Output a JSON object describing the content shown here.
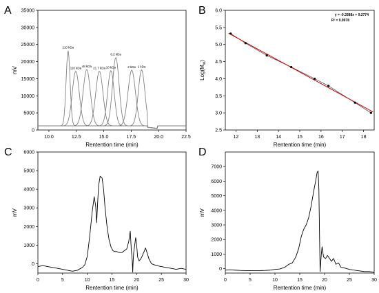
{
  "chart_data": [
    {
      "id": "A",
      "panel_label": "A",
      "type": "line",
      "xlabel": "Rentention time (min)",
      "ylabel": "mV",
      "xlim": [
        9.0,
        22.5
      ],
      "ylim": [
        0,
        35000
      ],
      "xticks": [
        "10.0",
        "12.5",
        "15.0",
        "17.5",
        "20.0",
        "22.5"
      ],
      "xtick_values": [
        10.0,
        12.5,
        15.0,
        17.5,
        20.0,
        22.5
      ],
      "yticks": [
        "0",
        "5000",
        "10000",
        "15000",
        "20000",
        "25000",
        "30000",
        "35000"
      ],
      "ytick_values": [
        0,
        5000,
        10000,
        15000,
        20000,
        25000,
        30000,
        35000
      ],
      "baseline": 1200,
      "line_color": "#808080",
      "grid": false,
      "peaks": [
        {
          "label": "210 kDa",
          "center": 11.75,
          "height": 22000,
          "width": 0.18
        },
        {
          "label": "110 kDa",
          "center": 12.45,
          "height": 16000,
          "width": 0.32
        },
        {
          "label": "48 kDa",
          "center": 13.45,
          "height": 16500,
          "width": 0.33
        },
        {
          "label": "21.7 kDa",
          "center": 14.6,
          "height": 16000,
          "width": 0.33
        },
        {
          "label": "10 kDa",
          "center": 15.65,
          "height": 16200,
          "width": 0.3
        },
        {
          "label": "6.2 kDa",
          "center": 16.1,
          "height": 20000,
          "width": 0.3
        },
        {
          "label": "2 kDa",
          "center": 17.55,
          "height": 16300,
          "width": 0.34
        },
        {
          "label": "1 kDa",
          "center": 18.45,
          "height": 16400,
          "width": 0.3
        }
      ]
    },
    {
      "id": "B",
      "panel_label": "B",
      "type": "scatter",
      "xlabel": "Rentention time (min)",
      "ylabel": "Log(M",
      "ylabel_sub": "w",
      "ylabel_close": ")",
      "xlim": [
        11.5,
        18.5
      ],
      "ylim": [
        2.5,
        6.0
      ],
      "xticks": [
        "12",
        "13",
        "14",
        "15",
        "16",
        "17",
        "18"
      ],
      "xtick_values": [
        12,
        13,
        14,
        15,
        16,
        17,
        18
      ],
      "yticks": [
        "2.5",
        "3.0",
        "3.5",
        "4.0",
        "4.5",
        "5.0",
        "5.5",
        "6.0"
      ],
      "ytick_values": [
        2.5,
        3.0,
        3.5,
        4.0,
        4.5,
        5.0,
        5.5,
        6.0
      ],
      "grid": false,
      "points": [
        {
          "x": 11.75,
          "y": 5.32
        },
        {
          "x": 12.45,
          "y": 5.04
        },
        {
          "x": 13.45,
          "y": 4.68
        },
        {
          "x": 14.6,
          "y": 4.34
        },
        {
          "x": 15.7,
          "y": 4.0
        },
        {
          "x": 16.35,
          "y": 3.79
        },
        {
          "x": 17.6,
          "y": 3.3
        },
        {
          "x": 18.35,
          "y": 3.0
        }
      ],
      "fit": {
        "slope": -0.3388,
        "intercept": 9.2774,
        "x_range": [
          11.65,
          18.45
        ],
        "color": "#cc0000"
      },
      "equation_text": "y = -0.3388x + 9.2774",
      "r2_text": "R² = 0.9978"
    },
    {
      "id": "C",
      "panel_label": "C",
      "type": "line",
      "xlabel": "Rentention time (min)",
      "ylabel": "mV",
      "xlim": [
        0,
        30
      ],
      "ylim": [
        -500,
        6000
      ],
      "xticks": [
        "0",
        "5",
        "10",
        "15",
        "20",
        "25",
        "30"
      ],
      "xtick_values": [
        0,
        5,
        10,
        15,
        20,
        25,
        30
      ],
      "yticks": [
        "0",
        "1000",
        "2000",
        "3000",
        "4000",
        "5000",
        "6000"
      ],
      "ytick_values": [
        0,
        1000,
        2000,
        3000,
        4000,
        5000,
        6000
      ],
      "grid": false,
      "line_color": "#000000",
      "x": [
        0,
        1,
        2,
        3,
        4,
        5,
        6,
        7,
        8,
        9,
        9.5,
        10,
        10.5,
        11,
        11.4,
        11.7,
        11.9,
        12.1,
        12.3,
        12.6,
        13.0,
        13.3,
        13.6,
        14.0,
        14.4,
        14.8,
        15.2,
        15.6,
        16.0,
        16.5,
        17.0,
        17.5,
        18.0,
        18.4,
        18.7,
        18.9,
        19.1,
        19.2,
        19.3,
        19.4,
        19.6,
        19.8,
        20.0,
        20.2,
        20.5,
        20.8,
        21.1,
        21.5,
        21.8,
        22.1,
        22.5,
        23.0,
        24.0,
        25.0,
        26.0,
        27.0,
        28.0,
        29.0,
        30.0
      ],
      "y": [
        -150,
        -100,
        -150,
        -200,
        -250,
        -300,
        -350,
        -400,
        -350,
        -200,
        -50,
        400,
        1500,
        2800,
        3600,
        3100,
        2200,
        3300,
        4200,
        4700,
        4600,
        4000,
        3000,
        2000,
        1300,
        900,
        700,
        650,
        650,
        600,
        600,
        700,
        800,
        1200,
        1750,
        800,
        200,
        -450,
        200,
        600,
        1000,
        1400,
        1000,
        350,
        150,
        250,
        400,
        650,
        850,
        600,
        250,
        0,
        -100,
        -150,
        -200,
        -250,
        -300,
        -250,
        -300
      ]
    },
    {
      "id": "D",
      "panel_label": "D",
      "type": "line",
      "xlabel": "Rentention time (min)",
      "ylabel": "mV",
      "xlim": [
        0,
        30
      ],
      "ylim": [
        -300,
        8000
      ],
      "xticks": [
        "0",
        "5",
        "10",
        "15",
        "20",
        "25",
        "30"
      ],
      "xtick_values": [
        0,
        5,
        10,
        15,
        20,
        25,
        30
      ],
      "yticks": [
        "0",
        "1000",
        "2000",
        "3000",
        "4000",
        "5000",
        "6000",
        "7000"
      ],
      "ytick_values": [
        0,
        1000,
        2000,
        3000,
        4000,
        5000,
        6000,
        7000
      ],
      "grid": false,
      "line_color": "#000000",
      "x": [
        0,
        1,
        2,
        3,
        4,
        5,
        6,
        7,
        8,
        9,
        10,
        11,
        12,
        12.8,
        13.5,
        14.2,
        14.8,
        15.3,
        15.8,
        16.3,
        16.8,
        17.3,
        17.8,
        18.2,
        18.5,
        18.7,
        18.85,
        19.0,
        19.1,
        19.2,
        19.35,
        19.5,
        19.8,
        20.2,
        20.6,
        21.0,
        21.4,
        21.8,
        22.3,
        22.8,
        23.3,
        24.0,
        25.0,
        26.0,
        27.0,
        28.0,
        29.0,
        30.0
      ],
      "y": [
        -100,
        -80,
        -100,
        -120,
        -130,
        -140,
        -140,
        -130,
        -120,
        -100,
        -50,
        -20,
        100,
        300,
        400,
        800,
        1400,
        2200,
        2700,
        3000,
        3500,
        4300,
        5300,
        6000,
        6600,
        6700,
        5500,
        2000,
        -200,
        300,
        1000,
        1500,
        800,
        700,
        900,
        700,
        500,
        700,
        300,
        400,
        100,
        50,
        -50,
        -100,
        -150,
        -200,
        -200,
        -250
      ]
    }
  ]
}
